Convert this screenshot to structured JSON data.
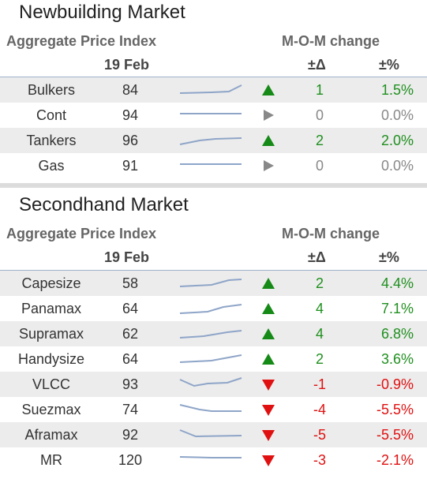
{
  "newbuilding": {
    "title": "Newbuilding Market",
    "header": {
      "index": "Aggregate Price Index",
      "date": "19 Feb",
      "change": "M-O-M change",
      "delta": "±Δ",
      "pct": "±%"
    },
    "rows": [
      [
        "Bulkers",
        84,
        1,
        "1.5%"
      ],
      [
        "Cont",
        94,
        0,
        "0.0%"
      ],
      [
        "Tankers",
        96,
        2,
        "2.0%"
      ],
      [
        "Gas",
        91,
        0,
        "0.0%"
      ]
    ]
  },
  "secondhand": {
    "title": "Secondhand Market",
    "header": {
      "index": "Aggregate Price Index",
      "date": "19 Feb",
      "change": "M-O-M change",
      "delta": "±Δ",
      "pct": "±%"
    },
    "rows": [
      [
        "Capesize",
        58,
        2,
        "4.4%"
      ],
      [
        "Panamax",
        64,
        4,
        "7.1%"
      ],
      [
        "Supramax",
        62,
        4,
        "6.8%"
      ],
      [
        "Handysize",
        64,
        2,
        "3.6%"
      ],
      [
        "VLCC",
        93,
        -1,
        "-0.9%"
      ],
      [
        "Suezmax",
        74,
        -4,
        "-5.5%"
      ],
      [
        "Aframax",
        92,
        -5,
        "-5.5%"
      ],
      [
        "MR",
        120,
        -3,
        "-2.1%"
      ]
    ]
  }
}
